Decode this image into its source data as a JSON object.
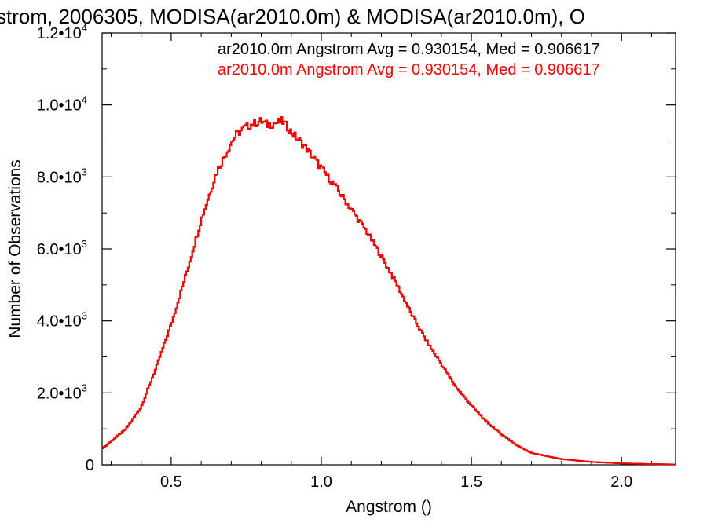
{
  "chart_data": {
    "type": "line",
    "title": "strom, 2006305, MODISA(ar2010.0m) & MODISA(ar2010.0m), O",
    "xlabel": "Angstrom ()",
    "ylabel": "Number of Observations",
    "xlim": [
      0.27,
      2.18
    ],
    "ylim": [
      0,
      12000
    ],
    "x_ticks": [
      {
        "value": 0.5,
        "label": "0.5"
      },
      {
        "value": 1.0,
        "label": "1.0"
      },
      {
        "value": 1.5,
        "label": "1.5"
      },
      {
        "value": 2.0,
        "label": "2.0"
      }
    ],
    "y_ticks": [
      {
        "value": 0,
        "mant": "0",
        "exp": ""
      },
      {
        "value": 2000,
        "mant": "2.0•10",
        "exp": "3"
      },
      {
        "value": 4000,
        "mant": "4.0•10",
        "exp": "3"
      },
      {
        "value": 6000,
        "mant": "6.0•10",
        "exp": "3"
      },
      {
        "value": 8000,
        "mant": "8.0•10",
        "exp": "3"
      },
      {
        "value": 10000,
        "mant": "1.0•10",
        "exp": "4"
      },
      {
        "value": 12000,
        "mant": "1.2•10",
        "exp": "4"
      }
    ],
    "grid": false,
    "legend_position": "top-right",
    "legend": [
      {
        "text": "ar2010.0m Angstrom Avg = 0.930154, Med = 0.906617",
        "color": "#000000"
      },
      {
        "text": "ar2010.0m Angstrom Avg = 0.930154, Med = 0.906617",
        "color": "#ff0000"
      }
    ],
    "series": [
      {
        "color": "#000000",
        "style": "step",
        "ref": "profile"
      },
      {
        "color": "#ff0000",
        "style": "step",
        "ref": "profile"
      }
    ],
    "profile": {
      "x": [
        0.27,
        0.3,
        0.35,
        0.4,
        0.45,
        0.5,
        0.55,
        0.6,
        0.65,
        0.7,
        0.72,
        0.75,
        0.78,
        0.8,
        0.82,
        0.85,
        0.87,
        0.9,
        0.95,
        1.0,
        1.05,
        1.1,
        1.15,
        1.2,
        1.25,
        1.3,
        1.35,
        1.4,
        1.45,
        1.5,
        1.55,
        1.6,
        1.65,
        1.7,
        1.8,
        1.9,
        2.0,
        2.1,
        2.18
      ],
      "y": [
        450,
        650,
        1000,
        1600,
        2700,
        3900,
        5300,
        6800,
        8100,
        8950,
        9200,
        9400,
        9500,
        9550,
        9450,
        9500,
        9550,
        9250,
        8800,
        8250,
        7700,
        7100,
        6500,
        5800,
        5050,
        4200,
        3450,
        2800,
        2150,
        1650,
        1200,
        850,
        550,
        330,
        160,
        80,
        40,
        20,
        10
      ]
    },
    "bin_width": 0.005
  }
}
